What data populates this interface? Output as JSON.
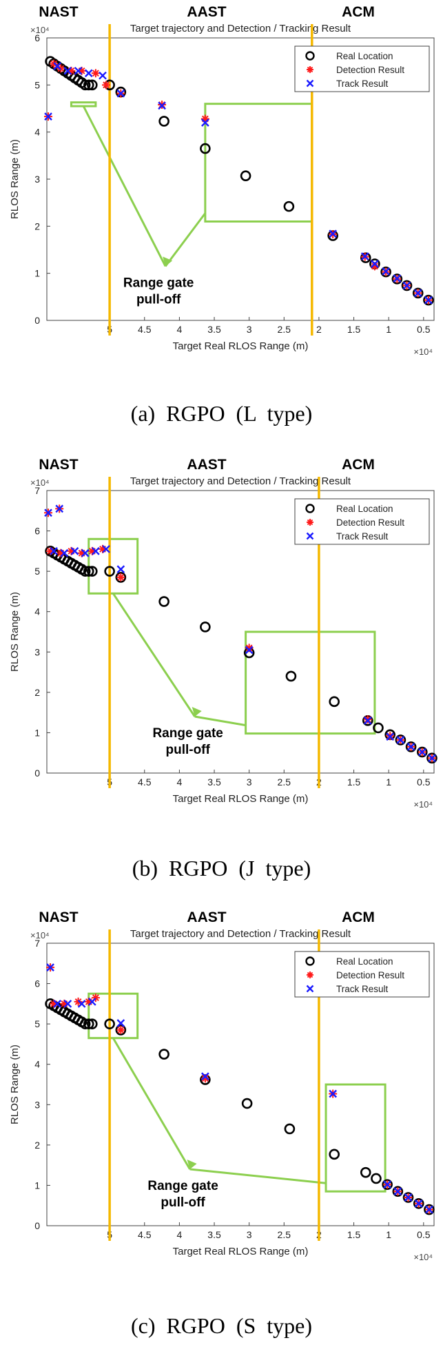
{
  "colors": {
    "phase_line": "#f5b800",
    "gate_box": "#8ccf4e",
    "arrow": "#8ccf4e",
    "real": "#000000",
    "detection": "#ff1a1a",
    "track": "#1a1aff",
    "axis": "#404040"
  },
  "legend": {
    "real": "Real Location",
    "detection": "Detection Result",
    "track": "Track Result"
  },
  "phase_labels": {
    "nast": "NAST",
    "aast": "AAST",
    "acm": "ACM"
  },
  "annotation": {
    "line1": "Range gate",
    "line2": "pull-off"
  },
  "chart_data": [
    {
      "type": "scatter",
      "caption": "(a) RGPO (L type)",
      "title": "Target trajectory and Detection / Tracking Result",
      "xlabel": "Target Real RLOS Range (m)",
      "ylabel": "RLOS Range (m)",
      "x_exponent": "×10⁴",
      "y_exponent": "×10⁴",
      "xlim": [
        5.9,
        0.35
      ],
      "ylim": [
        0,
        6
      ],
      "x_ticks": [
        "5",
        "4.5",
        "4",
        "3.5",
        "3",
        "2.5",
        "2",
        "1.5",
        "1",
        "0.5"
      ],
      "y_ticks": [
        "0",
        "1",
        "2",
        "3",
        "4",
        "5",
        "6"
      ],
      "phase_boundaries_x": [
        5.0,
        2.1
      ],
      "real": [
        [
          5.85,
          5.5
        ],
        [
          5.8,
          5.45
        ],
        [
          5.75,
          5.4
        ],
        [
          5.7,
          5.35
        ],
        [
          5.65,
          5.3
        ],
        [
          5.6,
          5.25
        ],
        [
          5.55,
          5.2
        ],
        [
          5.5,
          5.15
        ],
        [
          5.45,
          5.1
        ],
        [
          5.4,
          5.05
        ],
        [
          5.35,
          5.0
        ],
        [
          5.3,
          5.0
        ],
        [
          5.25,
          5.0
        ],
        [
          5.0,
          5.0
        ],
        [
          4.84,
          4.85
        ],
        [
          4.22,
          4.23
        ],
        [
          3.63,
          3.65
        ],
        [
          3.05,
          3.07
        ],
        [
          2.43,
          2.42
        ],
        [
          1.8,
          1.8
        ],
        [
          1.33,
          1.33
        ],
        [
          1.2,
          1.2
        ],
        [
          1.04,
          1.03
        ],
        [
          0.88,
          0.88
        ],
        [
          0.74,
          0.74
        ],
        [
          0.58,
          0.58
        ],
        [
          0.43,
          0.43
        ]
      ],
      "detection": [
        [
          5.88,
          4.33
        ],
        [
          5.8,
          5.45
        ],
        [
          5.7,
          5.35
        ],
        [
          5.55,
          5.3
        ],
        [
          5.4,
          5.3
        ],
        [
          5.2,
          5.25
        ],
        [
          5.05,
          5.0
        ],
        [
          4.84,
          4.82
        ],
        [
          4.25,
          4.58
        ],
        [
          3.63,
          4.28
        ],
        [
          1.8,
          1.83
        ],
        [
          1.34,
          1.35
        ],
        [
          1.2,
          1.15
        ],
        [
          1.04,
          1.03
        ],
        [
          0.88,
          0.88
        ],
        [
          0.74,
          0.74
        ],
        [
          0.58,
          0.58
        ],
        [
          0.43,
          0.43
        ]
      ],
      "track": [
        [
          5.88,
          4.33
        ],
        [
          5.75,
          5.4
        ],
        [
          5.6,
          5.3
        ],
        [
          5.45,
          5.3
        ],
        [
          5.3,
          5.25
        ],
        [
          5.1,
          5.2
        ],
        [
          4.84,
          4.82
        ],
        [
          4.25,
          4.56
        ],
        [
          3.63,
          4.2
        ],
        [
          1.8,
          1.84
        ],
        [
          1.34,
          1.36
        ],
        [
          1.2,
          1.2
        ],
        [
          1.04,
          1.04
        ],
        [
          0.88,
          0.89
        ],
        [
          0.74,
          0.74
        ],
        [
          0.58,
          0.58
        ],
        [
          0.43,
          0.43
        ]
      ],
      "gate_boxes": [
        [
          5.2,
          5.55,
          4.63,
          4.55
        ],
        [
          3.63,
          2.1,
          4.6,
          2.1
        ]
      ],
      "arrow_tip": [
        4.2,
        1.15
      ]
    },
    {
      "type": "scatter",
      "caption": "(b) RGPO (J type)",
      "title": "Target trajectory and Detection / Tracking Result",
      "xlabel": "Target Real RLOS Range (m)",
      "ylabel": "RLOS Range (m)",
      "x_exponent": "×10⁴",
      "y_exponent": "×10⁴",
      "xlim": [
        5.9,
        0.35
      ],
      "ylim": [
        0,
        7
      ],
      "x_ticks": [
        "5",
        "4.5",
        "4",
        "3.5",
        "3",
        "2.5",
        "2",
        "1.5",
        "1",
        "0.5"
      ],
      "y_ticks": [
        "0",
        "1",
        "2",
        "3",
        "4",
        "5",
        "6",
        "7"
      ],
      "phase_boundaries_x": [
        5.0,
        2.0
      ],
      "real": [
        [
          5.85,
          5.5
        ],
        [
          5.8,
          5.45
        ],
        [
          5.75,
          5.4
        ],
        [
          5.7,
          5.35
        ],
        [
          5.65,
          5.3
        ],
        [
          5.6,
          5.25
        ],
        [
          5.55,
          5.2
        ],
        [
          5.5,
          5.15
        ],
        [
          5.45,
          5.1
        ],
        [
          5.4,
          5.05
        ],
        [
          5.35,
          5.0
        ],
        [
          5.3,
          5.0
        ],
        [
          5.25,
          5.0
        ],
        [
          5.0,
          5.0
        ],
        [
          4.84,
          4.85
        ],
        [
          4.22,
          4.25
        ],
        [
          3.63,
          3.62
        ],
        [
          3.0,
          2.98
        ],
        [
          2.4,
          2.4
        ],
        [
          1.78,
          1.77
        ],
        [
          1.3,
          1.3
        ],
        [
          1.15,
          1.12
        ],
        [
          0.98,
          0.95
        ],
        [
          0.83,
          0.82
        ],
        [
          0.68,
          0.65
        ],
        [
          0.52,
          0.52
        ],
        [
          0.38,
          0.37
        ]
      ],
      "detection": [
        [
          5.88,
          6.45
        ],
        [
          5.72,
          6.55
        ],
        [
          5.85,
          5.5
        ],
        [
          5.7,
          5.45
        ],
        [
          5.55,
          5.5
        ],
        [
          5.4,
          5.45
        ],
        [
          5.25,
          5.5
        ],
        [
          5.1,
          5.55
        ],
        [
          4.84,
          4.85
        ],
        [
          3.0,
          3.1
        ],
        [
          1.3,
          1.33
        ],
        [
          0.98,
          0.92
        ],
        [
          0.83,
          0.82
        ],
        [
          0.68,
          0.65
        ],
        [
          0.52,
          0.52
        ],
        [
          0.38,
          0.37
        ]
      ],
      "track": [
        [
          5.88,
          6.45
        ],
        [
          5.72,
          6.55
        ],
        [
          5.8,
          5.5
        ],
        [
          5.65,
          5.45
        ],
        [
          5.5,
          5.5
        ],
        [
          5.35,
          5.45
        ],
        [
          5.2,
          5.5
        ],
        [
          5.05,
          5.55
        ],
        [
          4.84,
          5.05
        ],
        [
          3.0,
          3.05
        ],
        [
          1.3,
          1.3
        ],
        [
          0.98,
          0.9
        ],
        [
          0.83,
          0.82
        ],
        [
          0.68,
          0.65
        ],
        [
          0.52,
          0.52
        ],
        [
          0.38,
          0.37
        ]
      ],
      "gate_boxes": [
        [
          5.3,
          4.6,
          5.8,
          4.45
        ],
        [
          3.05,
          1.2,
          3.5,
          0.98
        ]
      ],
      "arrow_tip": [
        3.78,
        1.4
      ]
    },
    {
      "type": "scatter",
      "caption": "(c) RGPO (S type)",
      "title": "Target trajectory and Detection / Tracking Result",
      "xlabel": "Target Real RLOS Range (m)",
      "ylabel": "RLOS Range (m)",
      "x_exponent": "×10⁴",
      "y_exponent": "×10⁴",
      "xlim": [
        5.9,
        0.35
      ],
      "ylim": [
        0,
        7
      ],
      "x_ticks": [
        "5",
        "4.5",
        "4",
        "3.5",
        "3",
        "2.5",
        "2",
        "1.5",
        "1",
        "0.5"
      ],
      "y_ticks": [
        "0",
        "1",
        "2",
        "3",
        "4",
        "5",
        "6",
        "7"
      ],
      "phase_boundaries_x": [
        5.0,
        2.0
      ],
      "real": [
        [
          5.85,
          5.5
        ],
        [
          5.8,
          5.45
        ],
        [
          5.75,
          5.4
        ],
        [
          5.7,
          5.35
        ],
        [
          5.65,
          5.3
        ],
        [
          5.6,
          5.25
        ],
        [
          5.55,
          5.2
        ],
        [
          5.5,
          5.15
        ],
        [
          5.45,
          5.1
        ],
        [
          5.4,
          5.05
        ],
        [
          5.35,
          5.0
        ],
        [
          5.3,
          5.0
        ],
        [
          5.25,
          5.0
        ],
        [
          5.0,
          5.0
        ],
        [
          4.84,
          4.85
        ],
        [
          4.22,
          4.25
        ],
        [
          3.63,
          3.62
        ],
        [
          3.03,
          3.03
        ],
        [
          2.42,
          2.4
        ],
        [
          1.78,
          1.77
        ],
        [
          1.33,
          1.32
        ],
        [
          1.18,
          1.17
        ],
        [
          1.02,
          1.02
        ],
        [
          0.87,
          0.85
        ],
        [
          0.72,
          0.7
        ],
        [
          0.57,
          0.55
        ],
        [
          0.42,
          0.4
        ]
      ],
      "detection": [
        [
          5.85,
          6.4
        ],
        [
          5.8,
          5.5
        ],
        [
          5.65,
          5.5
        ],
        [
          5.45,
          5.55
        ],
        [
          5.3,
          5.55
        ],
        [
          5.2,
          5.65
        ],
        [
          4.84,
          4.85
        ],
        [
          3.63,
          3.65
        ],
        [
          1.8,
          3.27
        ],
        [
          1.02,
          1.02
        ],
        [
          0.87,
          0.85
        ],
        [
          0.72,
          0.7
        ],
        [
          0.57,
          0.55
        ],
        [
          0.42,
          0.4
        ]
      ],
      "track": [
        [
          5.85,
          6.4
        ],
        [
          5.75,
          5.5
        ],
        [
          5.6,
          5.5
        ],
        [
          5.4,
          5.5
        ],
        [
          5.25,
          5.55
        ],
        [
          4.84,
          5.02
        ],
        [
          3.63,
          3.7
        ],
        [
          1.8,
          3.27
        ],
        [
          1.02,
          1.02
        ],
        [
          0.87,
          0.85
        ],
        [
          0.72,
          0.7
        ],
        [
          0.57,
          0.55
        ],
        [
          0.42,
          0.4
        ]
      ],
      "gate_boxes": [
        [
          5.3,
          4.6,
          5.75,
          4.65
        ],
        [
          1.9,
          1.05,
          3.5,
          0.85
        ]
      ],
      "arrow_tip": [
        3.85,
        1.4
      ]
    }
  ]
}
